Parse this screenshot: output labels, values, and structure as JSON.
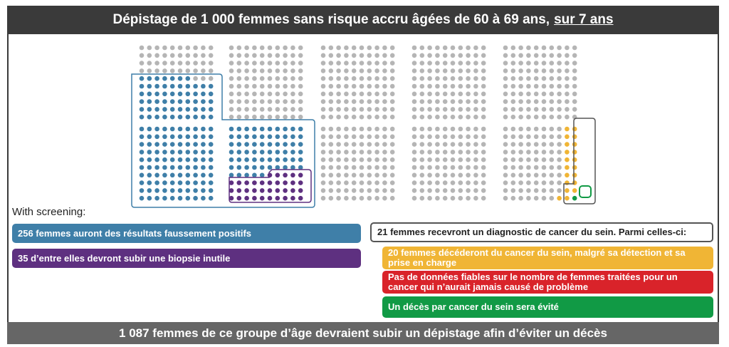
{
  "title": {
    "main": "Dépistage de 1 000 femmes sans risque accru âgées de 60 à 69 ans,",
    "emphasis": "sur 7 ans"
  },
  "diagram": {
    "total_women": 1000,
    "false_positive_count": 256,
    "biopsy_count": 35,
    "diagnosed_count": 21,
    "death_avoided_count": 1,
    "colors": {
      "neutral": "#b5b5b5",
      "false_positive": "#3f7fa8",
      "biopsy": "#5e3080",
      "diagnosed": "#f0b535",
      "death_avoided": "#119a45",
      "outline": "#555555"
    }
  },
  "with_screening_label": "With screening:",
  "boxes": {
    "false_positives": "256 femmes auront des résultats faussement positifs",
    "biopsy": "35 d’entre elles devront subir une biopsie inutile",
    "diagnosed": "21 femmes recevront un diagnostic de cancer du sein. Parmi celles-ci:",
    "die": "20 femmes décéderont du cancer du sein, malgré sa détection et sa prise en charge",
    "overdiagnosis": "Pas de données fiables sur le nombre de femmes traitées pour un cancer qui n’aurait jamais causé de problème",
    "avoided": "Un décès par cancer du sein sera évité"
  },
  "footer": "1 087 femmes de ce groupe d’âge devraient subir un dépistage afin d’éviter un décès"
}
